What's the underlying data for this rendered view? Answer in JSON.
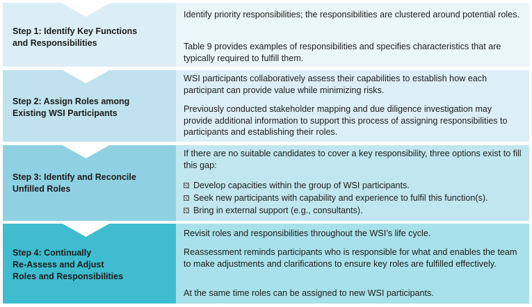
{
  "colors": {
    "step1": "#dbeef5",
    "step2": "#bfe2ee",
    "step3": "#8fd1e2",
    "step4": "#3fbccf",
    "separator": "#ffffff"
  },
  "steps": [
    {
      "title_lines": [
        "Step 1: Identify Key Functions",
        "and Responsibilities"
      ],
      "paragraphs": [
        "Identify priority responsibilities; the responsibilities are clustered around potential roles.",
        "Table 9 provides examples of responsibilities and specifies characteristics that are typically required to fulfill them."
      ]
    },
    {
      "title_lines": [
        "Step 2: Assign Roles among",
        "Existing WSI Participants"
      ],
      "paragraphs": [
        "WSI participants collaboratively assess their capabilities to establish how each participant can provide value while minimizing risks.",
        "Previously conducted stakeholder mapping and due diligence investigation may provide additional information to support this process of assigning responsibilities to participants and establishing their roles."
      ]
    },
    {
      "title_lines": [
        "Step 3: Identify and Reconcile",
        "Unfilled Roles"
      ],
      "paragraphs": [
        "If there are no suitable candidates to cover a key responsibility, three options exist to fill this gap:"
      ],
      "bullets": [
        "Develop capacities within the group of WSI participants.",
        "Seek new participants with capability and experience to fulfil this function(s).",
        "Bring in external support (e.g., consultants)."
      ]
    },
    {
      "title_lines": [
        "Step 4: Continually",
        "Re-Assess and Adjust",
        "Roles and Responsibilities"
      ],
      "paragraphs": [
        "Revisit roles and responsibilities throughout the WSI’s life cycle.",
        "Reassessment reminds participants who is responsible for what and enables the team to make adjustments and clarifications to ensure key roles are fulfilled effectively.",
        "At the same time roles can be assigned to new WSI participants."
      ]
    }
  ]
}
